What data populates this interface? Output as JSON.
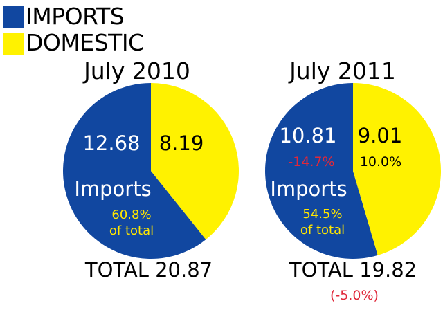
{
  "colors": {
    "imports": "#1147a0",
    "domestic": "#fff200",
    "white": "#ffffff",
    "yellow_text": "#ffe600",
    "change_text": "#e0283a",
    "black": "#000000"
  },
  "legend": [
    {
      "label": "IMPORTS",
      "color": "#1147a0"
    },
    {
      "label": "DOMESTIC",
      "color": "#fff200"
    }
  ],
  "chart_data": [
    {
      "type": "pie",
      "title": "July 2010",
      "slices": [
        {
          "name": "IMPORTS",
          "value": 12.68,
          "color": "#1147a0"
        },
        {
          "name": "DOMESTIC",
          "value": 8.19,
          "color": "#fff200"
        }
      ],
      "value_labels": {
        "imports": "12.68",
        "domestic": "8.19"
      },
      "annotations": {
        "imports_word": "Imports",
        "imports_share": "60.8%",
        "share_suffix": "of total"
      },
      "total_label": "TOTAL 20.87"
    },
    {
      "type": "pie",
      "title": "July 2011",
      "slices": [
        {
          "name": "IMPORTS",
          "value": 10.81,
          "color": "#1147a0"
        },
        {
          "name": "DOMESTIC",
          "value": 9.01,
          "color": "#fff200"
        }
      ],
      "value_labels": {
        "imports": "10.81",
        "domestic": "9.01"
      },
      "changes": {
        "imports": "-14.7%",
        "domestic": "10.0%",
        "total": "(-5.0%)"
      },
      "annotations": {
        "imports_word": "Imports",
        "imports_share": "54.5%",
        "share_suffix": "of total"
      },
      "total_label": "TOTAL 19.82"
    }
  ]
}
